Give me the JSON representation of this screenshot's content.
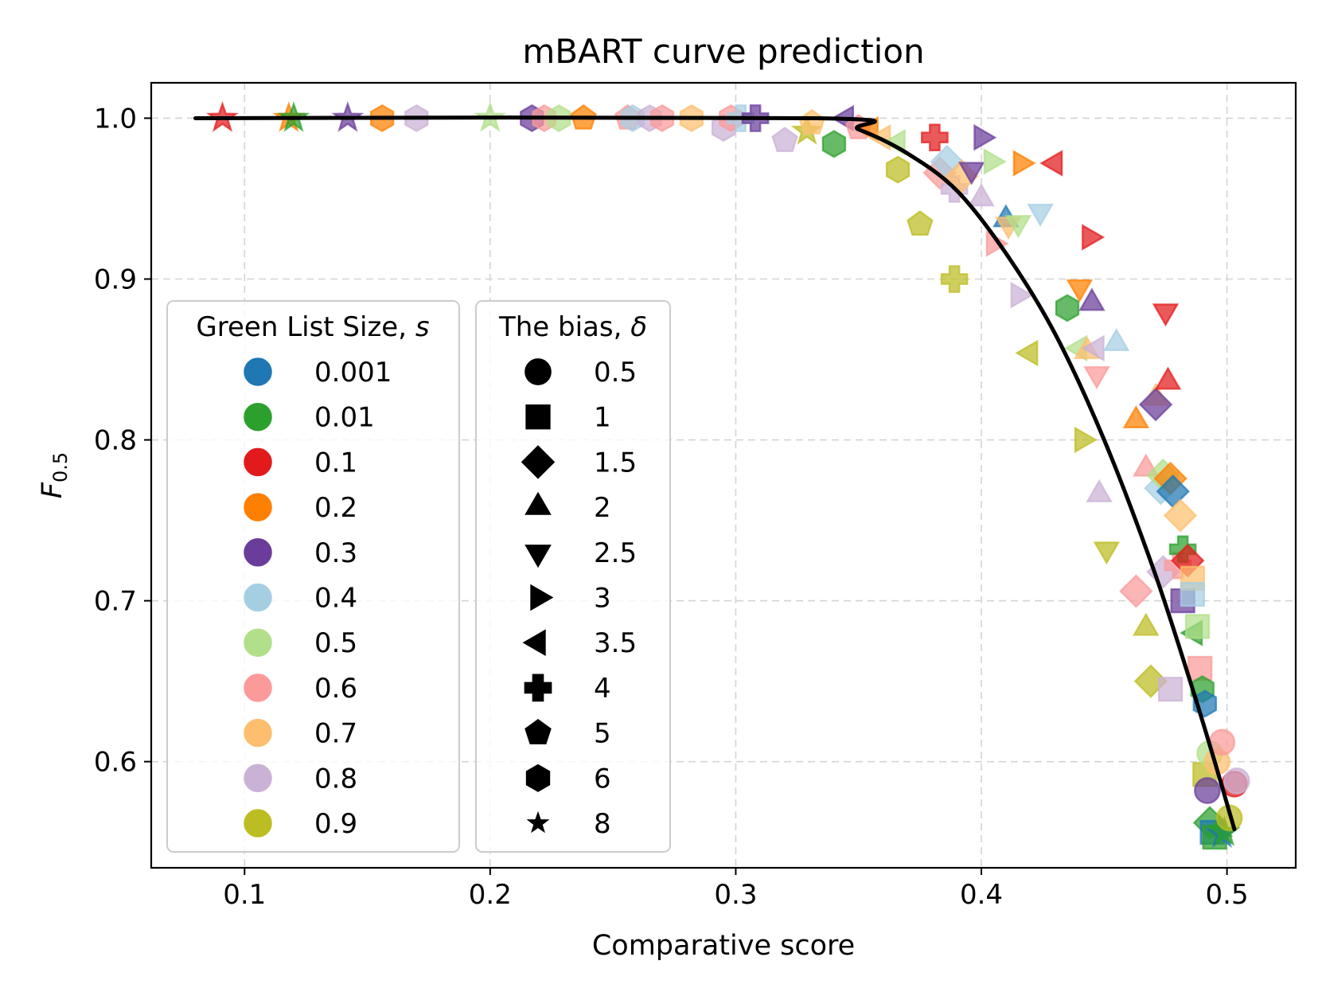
{
  "chart_data": {
    "type": "scatter",
    "title": "mBART curve prediction",
    "xlabel": "Comparative score",
    "ylabel_base": "F",
    "ylabel_sub": "0.5",
    "xlim": [
      0.062,
      0.528
    ],
    "ylim": [
      0.534,
      1.022
    ],
    "xticks": [
      "0.1",
      "0.2",
      "0.3",
      "0.4",
      "0.5"
    ],
    "xtick_values": [
      0.1,
      0.2,
      0.3,
      0.4,
      0.5
    ],
    "yticks": [
      "0.6",
      "0.7",
      "0.8",
      "0.9",
      "1.0"
    ],
    "ytick_values": [
      0.6,
      0.7,
      0.8,
      0.9,
      1.0
    ],
    "grid": true,
    "legend_color": {
      "title": "Green List Size, ",
      "symbol": "s",
      "placement": "lower-left",
      "entries": [
        {
          "label": "0.001",
          "color": "#1f77b4"
        },
        {
          "label": "0.01",
          "color": "#2ca02c"
        },
        {
          "label": "0.1",
          "color": "#e31a1c"
        },
        {
          "label": "0.2",
          "color": "#ff7f00"
        },
        {
          "label": "0.3",
          "color": "#6a3d9a"
        },
        {
          "label": "0.4",
          "color": "#a6cee3"
        },
        {
          "label": "0.5",
          "color": "#b2df8a"
        },
        {
          "label": "0.6",
          "color": "#fb9a99"
        },
        {
          "label": "0.7",
          "color": "#fdbf6f"
        },
        {
          "label": "0.8",
          "color": "#cab2d6"
        },
        {
          "label": "0.9",
          "color": "#bcbd22"
        }
      ]
    },
    "legend_marker": {
      "title": "The bias, ",
      "symbol": "δ",
      "placement": "lower-left",
      "entries": [
        {
          "label": "0.5",
          "marker": "circle"
        },
        {
          "label": "1",
          "marker": "square"
        },
        {
          "label": "1.5",
          "marker": "diamond"
        },
        {
          "label": "2",
          "marker": "triangle-up"
        },
        {
          "label": "2.5",
          "marker": "triangle-down"
        },
        {
          "label": "3",
          "marker": "triangle-right"
        },
        {
          "label": "3.5",
          "marker": "triangle-left"
        },
        {
          "label": "4",
          "marker": "plus"
        },
        {
          "label": "5",
          "marker": "pentagon"
        },
        {
          "label": "6",
          "marker": "hexagon"
        },
        {
          "label": "8",
          "marker": "star"
        }
      ]
    },
    "fit_curve": {
      "color": "#000000",
      "x": [
        0.08,
        0.333,
        0.35,
        0.37,
        0.39,
        0.41,
        0.43,
        0.45,
        0.47,
        0.485,
        0.495,
        0.503
      ],
      "y": [
        1.0,
        1.0,
        0.993,
        0.978,
        0.955,
        0.916,
        0.866,
        0.8,
        0.72,
        0.65,
        0.6,
        0.558
      ]
    },
    "points": [
      {
        "x": 0.091,
        "y": 1.0,
        "s": "0.1",
        "m": "star"
      },
      {
        "x": 0.118,
        "y": 1.0,
        "s": "0.2",
        "m": "star"
      },
      {
        "x": 0.12,
        "y": 1.0,
        "s": "0.01",
        "m": "star"
      },
      {
        "x": 0.142,
        "y": 1.0,
        "s": "0.3",
        "m": "star"
      },
      {
        "x": 0.156,
        "y": 1.0,
        "s": "0.2",
        "m": "hexagon"
      },
      {
        "x": 0.17,
        "y": 1.0,
        "s": "0.8",
        "m": "hexagon"
      },
      {
        "x": 0.2,
        "y": 1.0,
        "s": "0.5",
        "m": "star"
      },
      {
        "x": 0.217,
        "y": 1.0,
        "s": "0.3",
        "m": "hexagon"
      },
      {
        "x": 0.222,
        "y": 1.0,
        "s": "0.6",
        "m": "hexagon"
      },
      {
        "x": 0.228,
        "y": 1.0,
        "s": "0.5",
        "m": "hexagon"
      },
      {
        "x": 0.238,
        "y": 1.0,
        "s": "0.2",
        "m": "pentagon"
      },
      {
        "x": 0.256,
        "y": 1.0,
        "s": "0.6",
        "m": "pentagon"
      },
      {
        "x": 0.258,
        "y": 1.0,
        "s": "0.4",
        "m": "hexagon"
      },
      {
        "x": 0.265,
        "y": 1.0,
        "s": "0.8",
        "m": "hexagon"
      },
      {
        "x": 0.27,
        "y": 1.0,
        "s": "0.6",
        "m": "hexagon"
      },
      {
        "x": 0.282,
        "y": 1.0,
        "s": "0.7",
        "m": "hexagon"
      },
      {
        "x": 0.295,
        "y": 0.994,
        "s": "0.8",
        "m": "hexagon"
      },
      {
        "x": 0.298,
        "y": 1.0,
        "s": "0.6",
        "m": "hexagon"
      },
      {
        "x": 0.302,
        "y": 1.0,
        "s": "0.4",
        "m": "plus"
      },
      {
        "x": 0.308,
        "y": 1.0,
        "s": "0.3",
        "m": "plus"
      },
      {
        "x": 0.32,
        "y": 0.986,
        "s": "0.8",
        "m": "pentagon"
      },
      {
        "x": 0.329,
        "y": 0.992,
        "s": "0.9",
        "m": "star"
      },
      {
        "x": 0.331,
        "y": 0.997,
        "s": "0.7",
        "m": "pentagon"
      },
      {
        "x": 0.34,
        "y": 0.984,
        "s": "0.01",
        "m": "hexagon"
      },
      {
        "x": 0.345,
        "y": 1.0,
        "s": "0.3",
        "m": "triangle-left"
      },
      {
        "x": 0.35,
        "y": 0.994,
        "s": "0.6",
        "m": "pentagon"
      },
      {
        "x": 0.355,
        "y": 0.993,
        "s": "0.2",
        "m": "triangle-left"
      },
      {
        "x": 0.36,
        "y": 0.988,
        "s": "0.7",
        "m": "triangle-left"
      },
      {
        "x": 0.366,
        "y": 0.985,
        "s": "0.5",
        "m": "triangle-left"
      },
      {
        "x": 0.366,
        "y": 0.968,
        "s": "0.9",
        "m": "hexagon"
      },
      {
        "x": 0.375,
        "y": 0.934,
        "s": "0.9",
        "m": "pentagon"
      },
      {
        "x": 0.381,
        "y": 0.988,
        "s": "0.1",
        "m": "plus"
      },
      {
        "x": 0.383,
        "y": 0.966,
        "s": "0.6",
        "m": "diamond"
      },
      {
        "x": 0.386,
        "y": 0.973,
        "s": "0.4",
        "m": "diamond"
      },
      {
        "x": 0.389,
        "y": 0.956,
        "s": "0.8",
        "m": "plus"
      },
      {
        "x": 0.389,
        "y": 0.9,
        "s": "0.9",
        "m": "plus"
      },
      {
        "x": 0.392,
        "y": 0.964,
        "s": "0.7",
        "m": "diamond"
      },
      {
        "x": 0.396,
        "y": 0.968,
        "s": "0.3",
        "m": "triangle-down"
      },
      {
        "x": 0.4,
        "y": 0.988,
        "s": "0.3",
        "m": "triangle-right"
      },
      {
        "x": 0.4,
        "y": 0.95,
        "s": "0.8",
        "m": "triangle-up"
      },
      {
        "x": 0.404,
        "y": 0.973,
        "s": "0.5",
        "m": "triangle-right"
      },
      {
        "x": 0.405,
        "y": 0.922,
        "s": "0.6",
        "m": "triangle-right"
      },
      {
        "x": 0.41,
        "y": 0.937,
        "s": "0.001",
        "m": "triangle-up"
      },
      {
        "x": 0.411,
        "y": 0.934,
        "s": "0.7",
        "m": "triangle-down"
      },
      {
        "x": 0.415,
        "y": 0.935,
        "s": "0.5",
        "m": "triangle-down"
      },
      {
        "x": 0.415,
        "y": 0.89,
        "s": "0.8",
        "m": "triangle-right"
      },
      {
        "x": 0.416,
        "y": 0.972,
        "s": "0.2",
        "m": "triangle-right"
      },
      {
        "x": 0.42,
        "y": 0.854,
        "s": "0.9",
        "m": "triangle-left"
      },
      {
        "x": 0.424,
        "y": 0.942,
        "s": "0.4",
        "m": "triangle-down"
      },
      {
        "x": 0.43,
        "y": 0.972,
        "s": "0.1",
        "m": "triangle-left"
      },
      {
        "x": 0.435,
        "y": 0.882,
        "s": "0.01",
        "m": "hexagon"
      },
      {
        "x": 0.44,
        "y": 0.895,
        "s": "0.2",
        "m": "triangle-down"
      },
      {
        "x": 0.44,
        "y": 0.857,
        "s": "0.5",
        "m": "triangle-left"
      },
      {
        "x": 0.441,
        "y": 0.8,
        "s": "0.9",
        "m": "triangle-right"
      },
      {
        "x": 0.443,
        "y": 0.855,
        "s": "0.7",
        "m": "triangle-up"
      },
      {
        "x": 0.444,
        "y": 0.926,
        "s": "0.1",
        "m": "triangle-right"
      },
      {
        "x": 0.445,
        "y": 0.885,
        "s": "0.3",
        "m": "triangle-up"
      },
      {
        "x": 0.447,
        "y": 0.857,
        "s": "0.8",
        "m": "triangle-left"
      },
      {
        "x": 0.447,
        "y": 0.841,
        "s": "0.6",
        "m": "triangle-down"
      },
      {
        "x": 0.448,
        "y": 0.766,
        "s": "0.8",
        "m": "triangle-up"
      },
      {
        "x": 0.451,
        "y": 0.732,
        "s": "0.9",
        "m": "triangle-down"
      },
      {
        "x": 0.455,
        "y": 0.86,
        "s": "0.4",
        "m": "triangle-up"
      },
      {
        "x": 0.463,
        "y": 0.812,
        "s": "0.2",
        "m": "triangle-up"
      },
      {
        "x": 0.463,
        "y": 0.706,
        "s": "0.6",
        "m": "diamond"
      },
      {
        "x": 0.467,
        "y": 0.782,
        "s": "0.6",
        "m": "triangle-up"
      },
      {
        "x": 0.467,
        "y": 0.683,
        "s": "0.9",
        "m": "triangle-up"
      },
      {
        "x": 0.469,
        "y": 0.65,
        "s": "0.9",
        "m": "diamond"
      },
      {
        "x": 0.471,
        "y": 0.826,
        "s": "0.7",
        "m": "triangle-up"
      },
      {
        "x": 0.471,
        "y": 0.822,
        "s": "0.3",
        "m": "diamond"
      },
      {
        "x": 0.473,
        "y": 0.77,
        "s": "0.4",
        "m": "diamond"
      },
      {
        "x": 0.474,
        "y": 0.778,
        "s": "0.5",
        "m": "diamond"
      },
      {
        "x": 0.474,
        "y": 0.718,
        "s": "0.8",
        "m": "diamond"
      },
      {
        "x": 0.475,
        "y": 0.88,
        "s": "0.1",
        "m": "triangle-down"
      },
      {
        "x": 0.476,
        "y": 0.836,
        "s": "0.1",
        "m": "triangle-up"
      },
      {
        "x": 0.477,
        "y": 0.776,
        "s": "0.2",
        "m": "diamond"
      },
      {
        "x": 0.477,
        "y": 0.645,
        "s": "0.8",
        "m": "square"
      },
      {
        "x": 0.478,
        "y": 0.768,
        "s": "0.001",
        "m": "diamond"
      },
      {
        "x": 0.48,
        "y": 0.722,
        "s": "0.6",
        "m": "plus"
      },
      {
        "x": 0.481,
        "y": 0.753,
        "s": "0.7",
        "m": "diamond"
      },
      {
        "x": 0.482,
        "y": 0.732,
        "s": "0.01",
        "m": "plus"
      },
      {
        "x": 0.482,
        "y": 0.7,
        "s": "0.3",
        "m": "square"
      },
      {
        "x": 0.484,
        "y": 0.725,
        "s": "0.1",
        "m": "diamond"
      },
      {
        "x": 0.486,
        "y": 0.714,
        "s": "0.7",
        "m": "square"
      },
      {
        "x": 0.486,
        "y": 0.704,
        "s": "0.4",
        "m": "square"
      },
      {
        "x": 0.487,
        "y": 0.68,
        "s": "0.01",
        "m": "triangle-left"
      },
      {
        "x": 0.488,
        "y": 0.684,
        "s": "0.5",
        "m": "square"
      },
      {
        "x": 0.489,
        "y": 0.658,
        "s": "0.6",
        "m": "square"
      },
      {
        "x": 0.49,
        "y": 0.645,
        "s": "0.01",
        "m": "hexagon"
      },
      {
        "x": 0.491,
        "y": 0.636,
        "s": "0.001",
        "m": "hexagon"
      },
      {
        "x": 0.491,
        "y": 0.592,
        "s": "0.9",
        "m": "square"
      },
      {
        "x": 0.492,
        "y": 0.582,
        "s": "0.3",
        "m": "circle"
      },
      {
        "x": 0.493,
        "y": 0.605,
        "s": "0.5",
        "m": "circle"
      },
      {
        "x": 0.493,
        "y": 0.562,
        "s": "0.01",
        "m": "diamond"
      },
      {
        "x": 0.494,
        "y": 0.556,
        "s": "0.001",
        "m": "square"
      },
      {
        "x": 0.495,
        "y": 0.553,
        "s": "0.01",
        "m": "square"
      },
      {
        "x": 0.496,
        "y": 0.6,
        "s": "0.7",
        "m": "circle"
      },
      {
        "x": 0.497,
        "y": 0.558,
        "s": "0.01",
        "m": "triangle-up"
      },
      {
        "x": 0.498,
        "y": 0.612,
        "s": "0.6",
        "m": "circle"
      },
      {
        "x": 0.498,
        "y": 0.555,
        "s": "0.001",
        "m": "star"
      },
      {
        "x": 0.499,
        "y": 0.556,
        "s": "0.01",
        "m": "star"
      },
      {
        "x": 0.501,
        "y": 0.565,
        "s": "0.9",
        "m": "circle"
      },
      {
        "x": 0.503,
        "y": 0.586,
        "s": "0.1",
        "m": "circle"
      },
      {
        "x": 0.504,
        "y": 0.588,
        "s": "0.8",
        "m": "circle"
      }
    ]
  }
}
